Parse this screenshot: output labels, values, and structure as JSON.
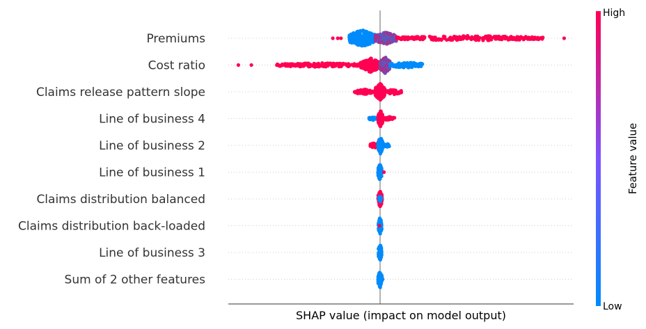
{
  "chart_data": {
    "type": "scatter",
    "subtype": "shap-beeswarm",
    "xlabel": "SHAP value (impact on model output)",
    "xlim": [
      -0.5,
      0.6
    ],
    "zero_line": 0,
    "colorbar": {
      "title": "Feature value",
      "high": "High",
      "low": "Low"
    },
    "colors": {
      "low": "#008bfb",
      "high": "#ff0052",
      "zero_line": "#999999",
      "grid": "#cccccc"
    },
    "features": [
      {
        "name": "Premiums",
        "clusters": [
          {
            "from": -0.095,
            "to": -0.015,
            "color": "low",
            "n": 260,
            "spread": 1.0
          },
          {
            "from": -0.015,
            "to": 0.05,
            "color": "mid",
            "n": 160,
            "spread": 0.75
          },
          {
            "from": 0.05,
            "to": 0.5,
            "color": "high",
            "n": 240,
            "spread": 0.3
          }
        ],
        "outliers": [
          {
            "x": -0.145,
            "color": "high"
          },
          {
            "x": -0.13,
            "color": "high"
          },
          {
            "x": -0.12,
            "color": "high"
          },
          {
            "x": 0.565,
            "color": "high"
          }
        ]
      },
      {
        "name": "Cost ratio",
        "clusters": [
          {
            "from": -0.32,
            "to": -0.05,
            "color": "high",
            "n": 180,
            "spread": 0.25
          },
          {
            "from": -0.06,
            "to": 0.0,
            "color": "high",
            "n": 140,
            "spread": 0.85
          },
          {
            "from": 0.0,
            "to": 0.03,
            "color": "mid",
            "n": 160,
            "spread": 1.0
          },
          {
            "from": 0.03,
            "to": 0.13,
            "color": "low",
            "n": 130,
            "spread": 0.35
          }
        ],
        "outliers": [
          {
            "x": -0.435,
            "color": "high"
          },
          {
            "x": -0.395,
            "color": "high"
          },
          {
            "x": -0.315,
            "color": "high"
          },
          {
            "x": -0.3,
            "color": "high"
          },
          {
            "x": -0.285,
            "color": "high"
          },
          {
            "x": 0.125,
            "color": "low"
          }
        ]
      },
      {
        "name": "Claims release pattern slope",
        "clusters": [
          {
            "from": -0.08,
            "to": -0.02,
            "color": "high",
            "n": 60,
            "spread": 0.3
          },
          {
            "from": -0.015,
            "to": 0.015,
            "color": "high",
            "n": 220,
            "spread": 1.0
          },
          {
            "from": 0.02,
            "to": 0.065,
            "color": "high",
            "n": 40,
            "spread": 0.3
          }
        ],
        "outliers": []
      },
      {
        "name": "Line of business 4",
        "clusters": [
          {
            "from": -0.035,
            "to": -0.008,
            "color": "low",
            "n": 25,
            "spread": 0.2
          },
          {
            "from": -0.006,
            "to": 0.008,
            "color": "high",
            "n": 120,
            "spread": 1.0
          },
          {
            "from": 0.012,
            "to": 0.045,
            "color": "high",
            "n": 30,
            "spread": 0.25
          }
        ],
        "outliers": []
      },
      {
        "name": "Line of business 2",
        "clusters": [
          {
            "from": -0.03,
            "to": -0.005,
            "color": "high",
            "n": 40,
            "spread": 0.3
          },
          {
            "from": -0.006,
            "to": 0.008,
            "color": "low",
            "n": 110,
            "spread": 1.0
          },
          {
            "from": 0.008,
            "to": 0.028,
            "color": "low",
            "n": 25,
            "spread": 0.3
          }
        ],
        "outliers": []
      },
      {
        "name": "Line of business 1",
        "clusters": [
          {
            "from": -0.006,
            "to": 0.005,
            "color": "low",
            "n": 120,
            "spread": 1.0
          }
        ],
        "outliers": [
          {
            "x": 0.012,
            "color": "high"
          }
        ]
      },
      {
        "name": "Claims distribution balanced",
        "clusters": [
          {
            "from": -0.006,
            "to": 0.006,
            "color": "high",
            "n": 90,
            "spread": 1.0
          },
          {
            "from": -0.004,
            "to": 0.004,
            "color": "low",
            "n": 20,
            "spread": 0.4
          }
        ],
        "outliers": []
      },
      {
        "name": "Claims distribution back-loaded",
        "clusters": [
          {
            "from": -0.005,
            "to": 0.005,
            "color": "low",
            "n": 80,
            "spread": 1.0
          }
        ],
        "outliers": [
          {
            "x": -0.002,
            "color": "high"
          }
        ]
      },
      {
        "name": "Line of business 3",
        "clusters": [
          {
            "from": -0.005,
            "to": 0.005,
            "color": "low",
            "n": 70,
            "spread": 1.0
          }
        ],
        "outliers": []
      },
      {
        "name": "Sum of 2 other features",
        "clusters": [
          {
            "from": -0.006,
            "to": 0.006,
            "color": "low",
            "n": 90,
            "spread": 1.0
          }
        ],
        "outliers": [
          {
            "x": 0.008,
            "color": "low"
          }
        ]
      }
    ]
  }
}
